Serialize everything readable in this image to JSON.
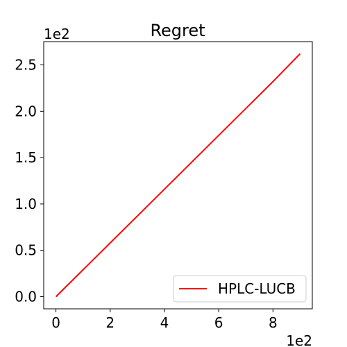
{
  "chart_data": {
    "type": "line",
    "title": "Regret",
    "xlabel": "",
    "ylabel": "",
    "x_offset_label": "1e2",
    "y_offset_label": "1e2",
    "xlim": [
      -0.45,
      9.45
    ],
    "ylim": [
      -0.131,
      2.751
    ],
    "x_ticks": [
      0,
      2,
      4,
      6,
      8
    ],
    "x_tick_labels": [
      "0",
      "2",
      "4",
      "6",
      "8"
    ],
    "y_ticks": [
      0,
      0.5,
      1.0,
      1.5,
      2.0,
      2.5
    ],
    "y_tick_labels": [
      "0.0",
      "0.5",
      "1.0",
      "1.5",
      "2.0",
      "2.5"
    ],
    "grid": false,
    "legend_position": "lower-right",
    "series": [
      {
        "name": "HPLC-LUCB",
        "color": "#ff0000",
        "x": [
          0,
          1,
          2,
          3,
          4,
          5,
          6,
          7,
          8,
          9
        ],
        "y": [
          0,
          0.29,
          0.58,
          0.87,
          1.16,
          1.45,
          1.74,
          2.03,
          2.32,
          2.62
        ]
      }
    ]
  }
}
